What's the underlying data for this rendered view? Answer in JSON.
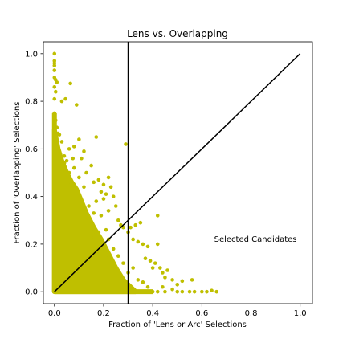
{
  "chart_data": {
    "type": "scatter",
    "title": "Lens vs. Overlapping",
    "xlabel": "Fraction of 'Lens or Arc' Selections",
    "ylabel": "Fraction of 'Overlapping' Selections",
    "xlim": [
      -0.045,
      1.05
    ],
    "ylim": [
      -0.05,
      1.05
    ],
    "xticks": [
      0.0,
      0.2,
      0.4,
      0.6,
      0.8,
      1.0
    ],
    "xtick_labels": [
      "0.0",
      "0.2",
      "0.4",
      "0.6",
      "0.8",
      "1.0"
    ],
    "yticks": [
      0.0,
      0.2,
      0.4,
      0.6,
      0.8,
      1.0
    ],
    "ytick_labels": [
      "0.0",
      "0.2",
      "0.4",
      "0.6",
      "0.8",
      "1.0"
    ],
    "grid": false,
    "marker_color": "#bfbf00",
    "line_color": "#000000",
    "annotation": {
      "text": "Selected Candidates",
      "x": 0.65,
      "y": 0.21
    },
    "reference_lines": [
      {
        "kind": "vertical",
        "x": 0.3,
        "y_range": [
          -0.05,
          1.05
        ]
      },
      {
        "kind": "diagonal",
        "points": [
          [
            0,
            0
          ],
          [
            1,
            1
          ]
        ]
      }
    ],
    "series": [
      {
        "points": [
          [
            0.0,
            1.0
          ],
          [
            0.0,
            0.97
          ],
          [
            0.0,
            0.96
          ],
          [
            0.0,
            0.95
          ],
          [
            0.0,
            0.93
          ],
          [
            0.0,
            0.9
          ],
          [
            0.005,
            0.89
          ],
          [
            0.01,
            0.88
          ],
          [
            0.0,
            0.86
          ],
          [
            0.005,
            0.84
          ],
          [
            0.0,
            0.81
          ],
          [
            0.03,
            0.8
          ],
          [
            0.065,
            0.875
          ],
          [
            0.09,
            0.785
          ],
          [
            0.045,
            0.81
          ],
          [
            0.0,
            0.75
          ],
          [
            0.005,
            0.72
          ],
          [
            0.01,
            0.69
          ],
          [
            0.0,
            0.68
          ],
          [
            0.015,
            0.665
          ],
          [
            0.02,
            0.66
          ],
          [
            0.0,
            0.64
          ],
          [
            0.03,
            0.63
          ],
          [
            0.06,
            0.6
          ],
          [
            0.08,
            0.61
          ],
          [
            0.1,
            0.64
          ],
          [
            0.12,
            0.59
          ],
          [
            0.02,
            0.59
          ],
          [
            0.04,
            0.57
          ],
          [
            0.05,
            0.55
          ],
          [
            0.075,
            0.56
          ],
          [
            0.11,
            0.56
          ],
          [
            0.17,
            0.65
          ],
          [
            0.29,
            0.62
          ],
          [
            0.13,
            0.5
          ],
          [
            0.15,
            0.53
          ],
          [
            0.1,
            0.48
          ],
          [
            0.16,
            0.46
          ],
          [
            0.18,
            0.47
          ],
          [
            0.2,
            0.45
          ],
          [
            0.22,
            0.48
          ],
          [
            0.23,
            0.44
          ],
          [
            0.19,
            0.42
          ],
          [
            0.21,
            0.41
          ],
          [
            0.2,
            0.39
          ],
          [
            0.24,
            0.4
          ],
          [
            0.25,
            0.36
          ],
          [
            0.22,
            0.34
          ],
          [
            0.19,
            0.32
          ],
          [
            0.26,
            0.3
          ],
          [
            0.27,
            0.28
          ],
          [
            0.28,
            0.27
          ],
          [
            0.3,
            0.25
          ],
          [
            0.31,
            0.27
          ],
          [
            0.33,
            0.28
          ],
          [
            0.35,
            0.29
          ],
          [
            0.32,
            0.22
          ],
          [
            0.34,
            0.21
          ],
          [
            0.36,
            0.2
          ],
          [
            0.38,
            0.19
          ],
          [
            0.42,
            0.32
          ],
          [
            0.42,
            0.2
          ],
          [
            0.37,
            0.14
          ],
          [
            0.39,
            0.13
          ],
          [
            0.41,
            0.12
          ],
          [
            0.4,
            0.1
          ],
          [
            0.43,
            0.1
          ],
          [
            0.44,
            0.08
          ],
          [
            0.46,
            0.09
          ],
          [
            0.45,
            0.06
          ],
          [
            0.48,
            0.05
          ],
          [
            0.5,
            0.03
          ],
          [
            0.52,
            0.045
          ],
          [
            0.56,
            0.05
          ],
          [
            0.44,
            0.02
          ],
          [
            0.48,
            0.01
          ],
          [
            0.5,
            0.0
          ],
          [
            0.52,
            0.0
          ],
          [
            0.55,
            0.0
          ],
          [
            0.57,
            0.0
          ],
          [
            0.6,
            0.0
          ],
          [
            0.62,
            0.0
          ],
          [
            0.64,
            0.005
          ],
          [
            0.66,
            0.0
          ],
          [
            0.34,
            0.05
          ],
          [
            0.36,
            0.04
          ],
          [
            0.38,
            0.02
          ],
          [
            0.4,
            0.0
          ],
          [
            0.42,
            0.0
          ],
          [
            0.45,
            0.0
          ],
          [
            0.32,
            0.1
          ],
          [
            0.3,
            0.08
          ],
          [
            0.28,
            0.12
          ],
          [
            0.26,
            0.15
          ],
          [
            0.24,
            0.18
          ],
          [
            0.22,
            0.22
          ],
          [
            0.21,
            0.26
          ],
          [
            0.17,
            0.38
          ],
          [
            0.16,
            0.33
          ],
          [
            0.14,
            0.36
          ],
          [
            0.12,
            0.44
          ],
          [
            0.08,
            0.52
          ],
          [
            0.06,
            0.5
          ],
          [
            0.04,
            0.54
          ],
          [
            0.025,
            0.52
          ],
          [
            0.15,
            0.23
          ],
          [
            0.18,
            0.25
          ]
        ]
      }
    ]
  }
}
